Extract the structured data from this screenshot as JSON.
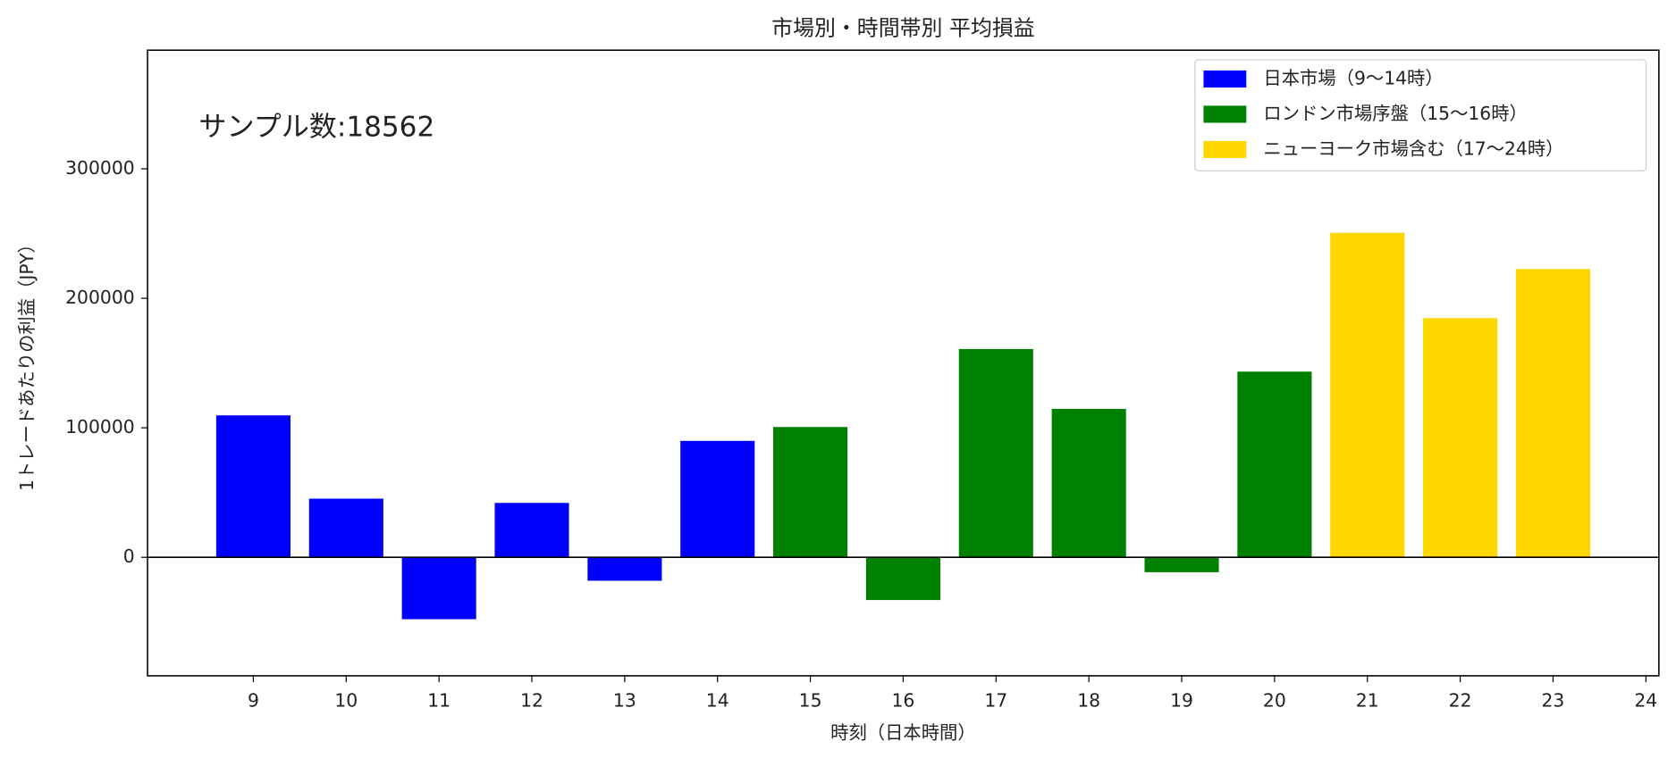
{
  "chart_data": {
    "type": "bar",
    "title": "市場別・時間帯別 平均損益",
    "xlabel": "時刻（日本時間）",
    "ylabel": "1トレードあたりの利益（JPY）",
    "annotation": "サンプル数:18562",
    "series": [
      {
        "name": "日本市場（9〜14時）",
        "color": "#0000ff",
        "x": [
          9,
          10,
          11,
          12,
          13,
          14
        ],
        "values": [
          109600,
          45300,
          -47800,
          42000,
          -18100,
          89900
        ]
      },
      {
        "name": "ロンドン市場序盤（15〜16時）",
        "color": "#008000",
        "x": [
          15,
          16,
          17,
          18,
          19,
          20
        ],
        "values": [
          100600,
          -33000,
          160800,
          114600,
          -11500,
          143400
        ]
      },
      {
        "name": "ニューヨーク市場含む（17〜24時）",
        "color": "#ffd700",
        "x": [
          21,
          22,
          23
        ],
        "values": [
          250600,
          184700,
          222600
        ]
      }
    ],
    "bar_width": 0.8,
    "xlim": [
      7.86,
      24.14
    ],
    "xticks": [
      9,
      10,
      11,
      12,
      13,
      14,
      15,
      16,
      17,
      18,
      19,
      20,
      21,
      22,
      23,
      24
    ],
    "ylim": [
      -91500,
      391600
    ],
    "yticks": [
      0,
      100000,
      200000,
      300000
    ],
    "legend": "upper right",
    "grid": false
  }
}
